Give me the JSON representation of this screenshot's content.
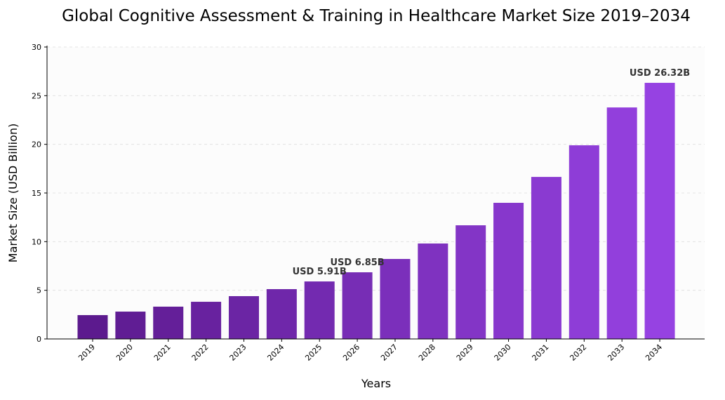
{
  "chart_data": {
    "type": "bar",
    "title": "Global Cognitive Assessment & Training in Healthcare Market Size 2019–2034",
    "xlabel": "Years",
    "ylabel": "Market Size (USD Billion)",
    "ylim": [
      0,
      30
    ],
    "yticks": [
      0,
      5,
      10,
      15,
      20,
      25,
      30
    ],
    "grid": true,
    "categories": [
      "2019",
      "2020",
      "2021",
      "2022",
      "2023",
      "2024",
      "2025",
      "2026",
      "2027",
      "2028",
      "2029",
      "2030",
      "2031",
      "2032",
      "2033",
      "2034"
    ],
    "values": [
      2.45,
      2.81,
      3.32,
      3.82,
      4.4,
      5.12,
      5.91,
      6.85,
      8.22,
      9.81,
      11.68,
      13.99,
      16.65,
      19.9,
      23.79,
      26.32
    ],
    "annotations": [
      {
        "category": "2025",
        "text": "USD 5.91B"
      },
      {
        "category": "2026",
        "text": "USD 6.85B"
      },
      {
        "category": "2034",
        "text": "USD 26.32B"
      }
    ],
    "color_start": "#5c1a8e",
    "color_end": "#9642e2"
  }
}
